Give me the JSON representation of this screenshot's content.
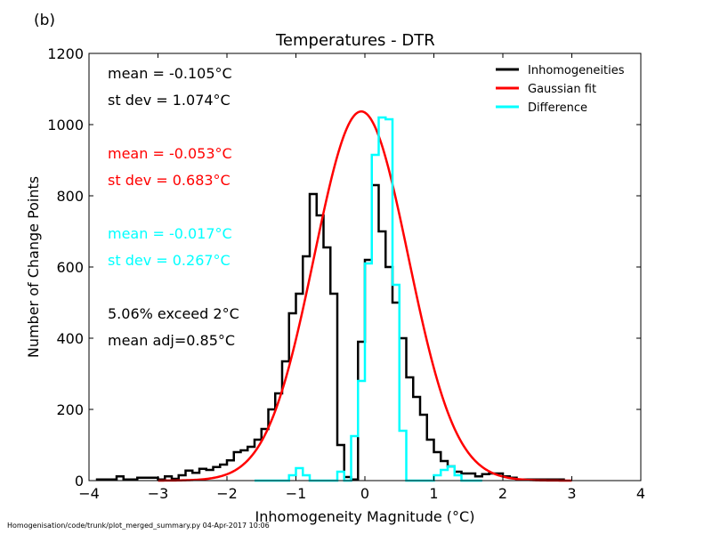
{
  "panel_label": "(b)",
  "footer_text": "Homogenisation/code/trunk/plot_merged_summary.py   04-Apr-2017 10:06",
  "annotations": [
    {
      "id": "inh-mean",
      "text": "mean = -0.105°C",
      "color": "#000000"
    },
    {
      "id": "inh-sd",
      "text": "st dev =  1.074°C",
      "color": "#000000"
    },
    {
      "id": "fit-mean",
      "text": "mean = -0.053°C",
      "color": "#ff0000"
    },
    {
      "id": "fit-sd",
      "text": "st dev =  0.683°C",
      "color": "#ff0000"
    },
    {
      "id": "diff-mean",
      "text": "mean = -0.017°C",
      "color": "#00ffff"
    },
    {
      "id": "diff-sd",
      "text": "st dev =  0.267°C",
      "color": "#00ffff"
    },
    {
      "id": "exceed",
      "text": "5.06% exceed 2°C",
      "color": "#000000"
    },
    {
      "id": "mean-adj",
      "text": "mean adj=0.85°C",
      "color": "#000000"
    }
  ],
  "chart_data": {
    "type": "line",
    "title": "Temperatures - DTR",
    "xlabel": "Inhomogeneity Magnitude (°C)",
    "ylabel": "Number of Change Points",
    "xlim": [
      -4,
      4
    ],
    "ylim": [
      0,
      1200
    ],
    "xticks": [
      -4,
      -3,
      -2,
      -1,
      0,
      1,
      2,
      3,
      4
    ],
    "xtick_labels": [
      "−4",
      "−3",
      "−2",
      "−1",
      "0",
      "1",
      "2",
      "3",
      "4"
    ],
    "yticks": [
      0,
      200,
      400,
      600,
      800,
      1000,
      1200
    ],
    "grid": false,
    "legend_position": "top-right",
    "bin_width": 0.1,
    "series": [
      {
        "name": "Inhomogeneities",
        "style": "step",
        "color": "#000000",
        "bin_edges_start": -3.9,
        "values": [
          3,
          3,
          3,
          12,
          3,
          3,
          8,
          8,
          8,
          3,
          12,
          5,
          15,
          28,
          22,
          33,
          30,
          38,
          45,
          57,
          80,
          85,
          95,
          115,
          145,
          200,
          245,
          335,
          470,
          525,
          630,
          805,
          745,
          655,
          525,
          100,
          10,
          3,
          390,
          620,
          830,
          700,
          600,
          500,
          400,
          290,
          235,
          185,
          115,
          80,
          55,
          40,
          25,
          20,
          20,
          12,
          18,
          20,
          20,
          12,
          8,
          3,
          3,
          3,
          3,
          3,
          3,
          3
        ]
      },
      {
        "name": "Gaussian fit",
        "style": "curve",
        "color": "#ff0000",
        "mean": -0.053,
        "stdev": 0.683,
        "peak": 1037,
        "x_range": [
          -3.0,
          3.0
        ]
      },
      {
        "name": "Difference",
        "style": "step",
        "color": "#00ffff",
        "bin_edges_start": -1.6,
        "values": [
          0,
          0,
          0,
          0,
          0,
          15,
          35,
          15,
          0,
          0,
          0,
          0,
          25,
          0,
          125,
          280,
          610,
          915,
          1020,
          1015,
          550,
          140,
          0,
          0,
          0,
          0,
          15,
          30,
          40,
          15,
          0,
          0,
          0
        ]
      }
    ]
  }
}
